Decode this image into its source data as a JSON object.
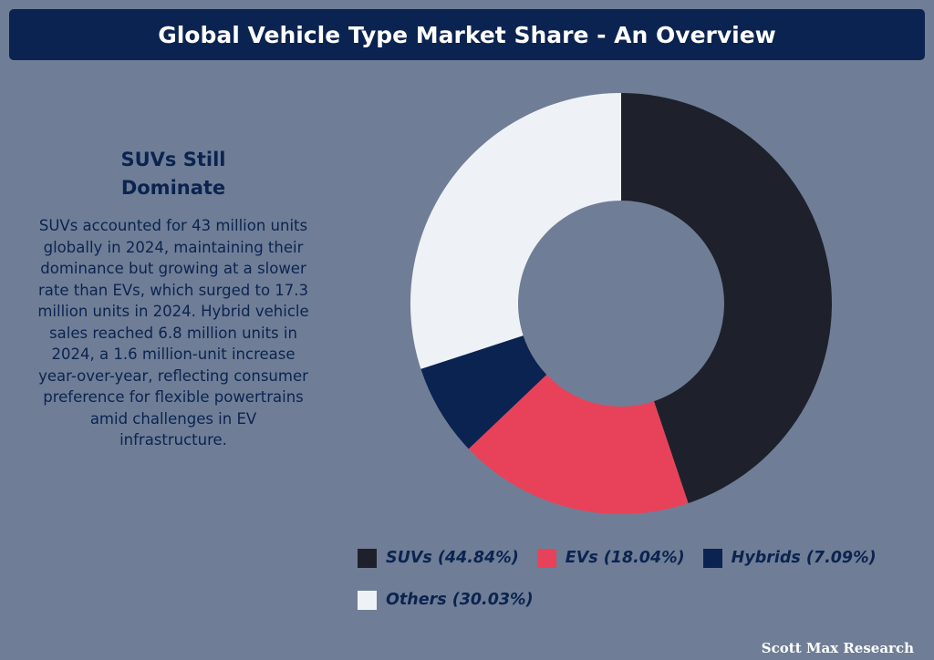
{
  "header": {
    "title": "Global Vehicle Type Market Share - An Overview"
  },
  "sidebar": {
    "heading_line1": "SUVs Still",
    "heading_line2": "Dominate",
    "body": "SUVs accounted for 43 million units globally in 2024, maintaining their dominance but growing at a slower rate than EVs, which surged to 17.3 million units in 2024. Hybrid vehicle sales reached 6.8 million units in 2024, a 1.6 million-unit increase year-over-year, reflecting consumer preference for flexible powertrains amid challenges in EV infrastructure."
  },
  "footer": {
    "brand": "Scott Max Research"
  },
  "colors": {
    "background": "#6f7e96",
    "title_bar": "#0b2350",
    "suvs": "#1e212b",
    "evs": "#e8425a",
    "hybrids": "#0b2350",
    "others": "#eef2f7"
  },
  "chart_data": {
    "type": "pie",
    "variant": "donut",
    "title": "",
    "start_angle": "12 o'clock, clockwise",
    "categories": [
      "SUVs",
      "EVs",
      "Hybrids",
      "Others"
    ],
    "values": [
      44.84,
      18.04,
      7.09,
      30.03
    ],
    "unit": "%",
    "legend_labels": [
      "SUVs (44.84%)",
      "EVs (18.04%)",
      "Hybrids (7.09%)",
      "Others (30.03%)"
    ],
    "colors": [
      "#1e212b",
      "#e8425a",
      "#0b2350",
      "#eef2f7"
    ],
    "legend_position": "bottom"
  }
}
